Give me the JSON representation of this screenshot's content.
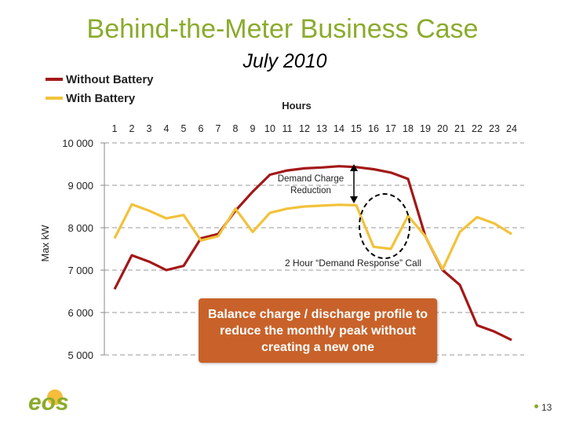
{
  "slide": {
    "title": "Behind-the-Meter Business Case",
    "subtitle": "July 2010",
    "page_number": "13",
    "logo_text": "eos"
  },
  "colors": {
    "title": "#8bab2c",
    "without_battery": "#a31818",
    "with_battery": "#f2c23a",
    "callout_bg": "#c8622a"
  },
  "annotations": {
    "demand_charge": [
      "Demand Charge",
      "Reduction"
    ],
    "demand_response": "2 Hour “Demand Response” Call",
    "callout": "Balance charge / discharge profile to reduce the monthly peak without creating a new one"
  },
  "chart_data": {
    "type": "line",
    "title": "July 2010",
    "xlabel": "Hours",
    "ylabel": "Max kW",
    "x": [
      1,
      2,
      3,
      4,
      5,
      6,
      7,
      8,
      9,
      10,
      11,
      12,
      13,
      14,
      15,
      16,
      17,
      18,
      19,
      20,
      21,
      22,
      23,
      24
    ],
    "xtick_labels": [
      "1",
      "2",
      "3",
      "4",
      "5",
      "6",
      "7",
      "8",
      "9",
      "10",
      "11",
      "12",
      "13",
      "14",
      "15",
      "16",
      "17",
      "18",
      "19",
      "20",
      "21",
      "22",
      "23",
      "24"
    ],
    "ylim": [
      5000,
      10000
    ],
    "yticks": [
      5000,
      6000,
      7000,
      8000,
      9000,
      10000
    ],
    "ytick_labels": [
      "5 000",
      "6 000",
      "7 000",
      "8 000",
      "9 000",
      "10 000"
    ],
    "y_inverted": true,
    "x_axis_position": "top",
    "series": [
      {
        "name": "Without Battery",
        "values": [
          6550,
          7350,
          7200,
          7000,
          7100,
          7750,
          7850,
          8400,
          8850,
          9250,
          9350,
          9400,
          9420,
          9450,
          9430,
          9380,
          9300,
          9150,
          7800,
          7000,
          6650,
          5700,
          5550,
          5350
        ]
      },
      {
        "name": "With Battery",
        "values": [
          7750,
          8550,
          8400,
          8220,
          8300,
          7700,
          7800,
          8450,
          7900,
          8350,
          8450,
          8500,
          8520,
          8540,
          8530,
          7550,
          7500,
          8280,
          7800,
          7020,
          7900,
          8250,
          8100,
          7850
        ]
      }
    ]
  }
}
